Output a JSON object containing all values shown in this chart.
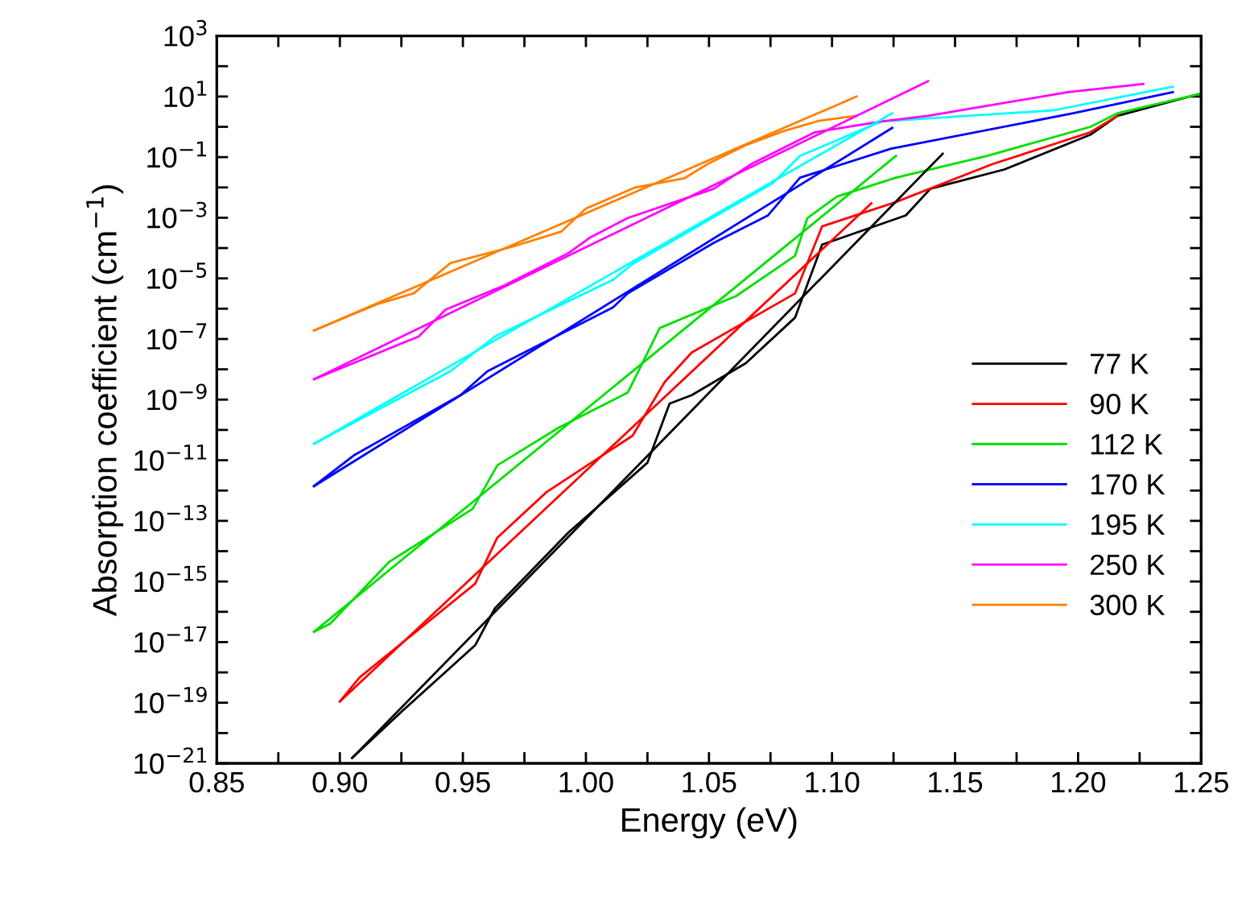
{
  "chart_data": {
    "type": "line",
    "xlabel": "Energy (eV)",
    "ylabel": "Absorption coefficient (cm$^{−1}$)",
    "log": "y",
    "legend": "right",
    "grid": false,
    "marker": "none",
    "line_style": "solid",
    "xlim": [
      0.85,
      1.25
    ],
    "xticks": [
      0.85,
      {
        "value": 0.875,
        "label": null
      },
      "0.90",
      {
        "value": 0.925,
        "label": null
      },
      0.95,
      {
        "value": 0.975,
        "label": null
      },
      "1.00",
      {
        "value": 1.025,
        "label": null
      },
      1.05,
      {
        "value": 1.075,
        "label": null
      },
      "1.10",
      {
        "value": 1.125,
        "label": null
      },
      1.15,
      {
        "value": 1.175,
        "label": null
      },
      "1.20",
      {
        "value": 1.225,
        "label": null
      },
      1.25
    ],
    "ylim": [
      1e-21,
      1000
    ],
    "yticks": [
      {
        "value": 1e-21,
        "label": "10$^{−21}$"
      },
      {
        "value": 1e-20,
        "label": null
      },
      {
        "value": 1e-19,
        "label": "10$^{−19}$"
      },
      {
        "value": 1e-18,
        "label": null
      },
      {
        "value": 1e-17,
        "label": "10$^{−17}$"
      },
      {
        "value": 1e-16,
        "label": null
      },
      {
        "value": 1e-15,
        "label": "10$^{−15}$"
      },
      {
        "value": 1e-14,
        "label": null
      },
      {
        "value": 1e-13,
        "label": "10$^{−13}$"
      },
      {
        "value": 1e-12,
        "label": null
      },
      {
        "value": 1e-11,
        "label": "10$^{−11}$"
      },
      {
        "value": 1e-10,
        "label": null
      },
      {
        "value": 1e-09,
        "label": "10$^{−9}$"
      },
      {
        "value": 1e-08,
        "label": null
      },
      {
        "value": 1e-07,
        "label": "10$^{−7}$"
      },
      {
        "value": 1e-06,
        "label": null
      },
      {
        "value": 1e-05,
        "label": "10$^{−5}$"
      },
      {
        "value": 0.0001,
        "label": null
      },
      {
        "value": 0.001,
        "label": "10$^{−3}$"
      },
      {
        "value": 0.01,
        "label": null
      },
      {
        "value": 0.1,
        "label": "10$^{−1}$"
      },
      {
        "value": 1,
        "label": null
      },
      {
        "value": 10,
        "label": "10$^{1}$"
      },
      {
        "value": 100,
        "label": null
      },
      {
        "value": 1000,
        "label": "10$^{3}$"
      }
    ],
    "series": [
      {
        "name": "77 K",
        "color": "#000000",
        "x": [
          0.905,
          0.926,
          0.955,
          0.963,
          0.993,
          1.025,
          1.034,
          1.043,
          1.065,
          1.085,
          1.096,
          1.13,
          1.14,
          1.17,
          1.205,
          1.216,
          1.249
        ],
        "values": [
          1.5e-21,
          5.9e-20,
          7.9e-18,
          1.3e-16,
          4.2e-14,
          8.3e-12,
          7.4e-10,
          1.4e-09,
          1.6e-08,
          5.1e-07,
          0.00013,
          0.0012,
          0.0091,
          0.039,
          0.55,
          2.3,
          12
        ]
      },
      {
        "name": "90 K",
        "color": "#ff0000",
        "x": [
          0.9,
          0.908,
          0.955,
          0.964,
          0.984,
          1.019,
          1.032,
          1.043,
          1.085,
          1.096,
          1.126,
          1.165,
          1.205,
          1.216
        ],
        "values": [
          1.1e-19,
          6.8e-19,
          8.5e-16,
          2.8e-14,
          8.9e-13,
          6.5e-11,
          3.8e-09,
          3.6e-08,
          3.2e-06,
          0.00052,
          0.0033,
          0.058,
          0.66,
          2.3
        ]
      },
      {
        "name": "112 K",
        "color": "#00e000",
        "x": [
          0.8895,
          0.896,
          0.92,
          0.954,
          0.964,
          0.989,
          1.017,
          1.03,
          1.05,
          1.061,
          1.085,
          1.09,
          1.102,
          1.126,
          1.163,
          1.205,
          1.216,
          1.249
        ],
        "values": [
          2.2e-17,
          4e-17,
          4.4e-15,
          2.5e-13,
          6.8e-12,
          1.2e-10,
          1.7e-09,
          2.3e-07,
          1.1e-06,
          2.6e-06,
          5.6e-05,
          0.00098,
          0.005,
          0.021,
          0.11,
          1,
          2.8,
          12
        ]
      },
      {
        "name": "170 K",
        "color": "#0000ff",
        "x": [
          0.8895,
          0.906,
          0.949,
          0.96,
          1.011,
          1.017,
          1.052,
          1.074,
          1.087,
          1.124,
          1.198,
          1.2385
        ],
        "values": [
          1.4e-12,
          1.5e-11,
          1.4e-09,
          8.7e-09,
          1.1e-06,
          3.2e-06,
          0.00015,
          0.0012,
          0.021,
          0.19,
          2.8,
          14
        ]
      },
      {
        "name": "195 K",
        "color": "#00ffff",
        "x": [
          0.8895,
          0.945,
          0.963,
          1.011,
          1.019,
          1.076,
          1.087,
          1.12,
          1.19,
          1.2385
        ],
        "values": [
          3.5e-11,
          8.7e-09,
          1.2e-07,
          8.9e-06,
          3e-05,
          0.014,
          0.11,
          1.5,
          3.5,
          21
        ]
      },
      {
        "name": "250 K",
        "color": "#ff00ff",
        "x": [
          0.8895,
          0.932,
          0.943,
          0.967,
          0.993,
          1.002,
          1.017,
          1.052,
          1.067,
          1.093,
          1.12,
          1.139,
          1.196,
          1.2265
        ],
        "values": [
          4.7e-09,
          1.2e-07,
          9.3e-07,
          5.9e-06,
          6.9e-05,
          0.00023,
          0.00098,
          0.0091,
          0.058,
          0.66,
          1.5,
          2.3,
          14,
          26
        ]
      },
      {
        "name": "300 K",
        "color": "#ff8000",
        "x": [
          0.8895,
          0.915,
          0.93,
          0.945,
          0.97,
          0.99,
          1.0,
          1.02,
          1.04,
          1.05,
          1.065,
          1.08,
          1.095,
          1.11
        ],
        "values": [
          1.9e-07,
          1.4e-06,
          3.2e-06,
          3.2e-05,
          0.00011,
          0.00035,
          0.002,
          0.01,
          0.02,
          0.063,
          0.25,
          0.71,
          1.6,
          2.3
        ]
      },
      {
        "color": "#000000",
        "x": [
          0.905,
          1.145
        ],
        "values": [
          1.5e-21,
          0.13
        ]
      },
      {
        "color": "#ff0000",
        "x": [
          0.9,
          1.116
        ],
        "values": [
          1.1e-19,
          0.003
        ]
      },
      {
        "color": "#00e000",
        "x": [
          0.8895,
          1.126
        ],
        "values": [
          2.2e-17,
          0.11
        ]
      },
      {
        "color": "#0000ff",
        "x": [
          0.8895,
          1.1245
        ],
        "values": [
          1.4e-12,
          0.93
        ]
      },
      {
        "color": "#00ffff",
        "x": [
          0.8895,
          1.1245
        ],
        "values": [
          3.5e-11,
          2.8
        ]
      },
      {
        "color": "#ff00ff",
        "x": [
          0.8895,
          1.139
        ],
        "values": [
          4.7e-09,
          32
        ]
      },
      {
        "color": "#ff8000",
        "x": [
          0.8895,
          1.11
        ],
        "values": [
          1.9e-07,
          10
        ]
      }
    ]
  }
}
